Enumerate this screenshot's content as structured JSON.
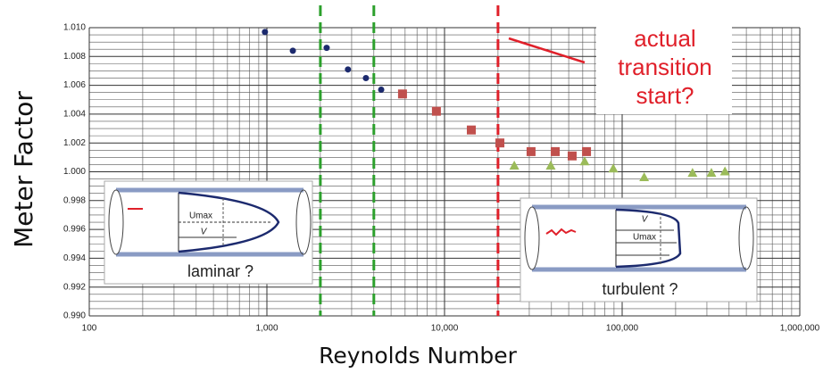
{
  "chart_data": {
    "type": "scatter",
    "x_label": "Reynolds Number",
    "y_label": "Meter Factor",
    "x_log": true,
    "grid": true,
    "minor_grid": true,
    "xlim": [
      100,
      1000000
    ],
    "ylim": [
      0.99,
      1.01
    ],
    "xticks": [
      100,
      {
        "value": 1000,
        "label": "1,000"
      },
      {
        "value": 10000,
        "label": "10,000"
      },
      {
        "value": 100000,
        "label": "100,000"
      },
      {
        "value": 1000000,
        "label": "1,000,000"
      }
    ],
    "yticks": [
      {
        "value": 0.99,
        "label": "0.990"
      },
      {
        "value": 0.992,
        "label": "0.992"
      },
      {
        "value": 0.994,
        "label": "0.994"
      },
      {
        "value": 0.996,
        "label": "0.996"
      },
      {
        "value": 0.998,
        "label": "0.998"
      },
      {
        "value": 1,
        "label": "1.000"
      },
      {
        "value": 1.002,
        "label": "1.002"
      },
      {
        "value": 1.004,
        "label": "1.004"
      },
      {
        "value": 1.006,
        "label": "1.006"
      },
      {
        "value": 1.008,
        "label": "1.008"
      },
      {
        "value": 1.01,
        "label": "1.010"
      }
    ],
    "series": [
      {
        "color": "#1c2a6e",
        "marker": "circle",
        "x": [
          975,
          1400,
          2170,
          2860,
          3610,
          4400
        ],
        "values": [
          1.0097,
          1.0084,
          1.0086,
          1.0071,
          1.0065,
          1.0057
        ]
      },
      {
        "color": "#c0504d",
        "marker": "square",
        "x": [
          5800,
          9000,
          14150,
          20500,
          30700,
          42000,
          52300,
          63000
        ],
        "values": [
          1.0054,
          1.0042,
          1.0029,
          1.002,
          1.0014,
          1.0014,
          1.0011,
          1.0014
        ]
      },
      {
        "color": "#9bbb59",
        "marker": "triangle",
        "x": [
          24700,
          39600,
          61500,
          89100,
          133000,
          249000,
          318000,
          379000
        ],
        "values": [
          1.0004,
          1.0004,
          1.0007,
          1.0002,
          0.9996,
          0.9999,
          0.9999,
          1.0
        ]
      }
    ],
    "vlines": [
      {
        "value": 2000,
        "color": "#2ca02c"
      },
      {
        "value": 4000,
        "color": "#2ca02c"
      },
      {
        "value": 20000,
        "color": "#e0202a"
      }
    ],
    "annotation": {
      "lines": [
        "actual",
        "transition",
        "start?"
      ],
      "color": "#e0202a"
    },
    "insets": [
      {
        "label": "laminar ?",
        "umax": "Umax",
        "v": "V"
      },
      {
        "label": "turbulent ?",
        "umax": "Umax",
        "v": "V"
      }
    ]
  }
}
